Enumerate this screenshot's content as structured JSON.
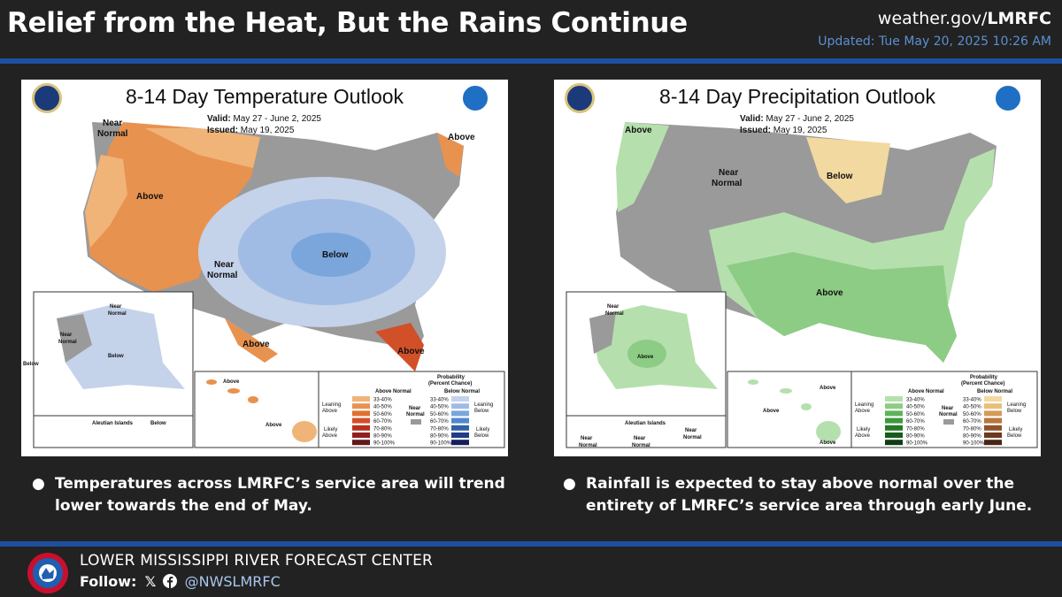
{
  "header": {
    "title": "Relief from the Heat, But the Rains Continue",
    "site_prefix": "weather.gov/",
    "site_bold": "LMRFC",
    "updated": "Updated: Tue May 20, 2025 10:26 AM"
  },
  "colors": {
    "background": "#222222",
    "accent_bar": "#1f4fa0",
    "updated_text": "#5b8fd0",
    "handle_text": "#a9c6ee"
  },
  "temperature_map": {
    "title": "8-14 Day Temperature Outlook",
    "valid_label": "Valid:",
    "valid_value": "May 27 - June 2, 2025",
    "issued_label": "Issued:",
    "issued_value": "May 19, 2025",
    "regions": {
      "near_normal_nw_1": "Near",
      "near_normal_nw_2": "Normal",
      "above_west": "Above",
      "above_ne": "Above",
      "near_normal_central_1": "Near",
      "near_normal_central_2": "Normal",
      "below_central": "Below",
      "above_texas": "Above",
      "above_florida": "Above",
      "ak_near_normal_n_1": "Near",
      "ak_near_normal_n_2": "Normal",
      "ak_near_normal_w_1": "Near",
      "ak_near_normal_w_2": "Normal",
      "ak_below": "Below",
      "ak_below_w": "Below",
      "aleutian": "Aleutian Islands",
      "aleutian_below": "Below",
      "hi_above_1": "Above",
      "hi_above_2": "Above"
    },
    "legend": {
      "heading_1": "Probability",
      "heading_2": "(Percent Chance)",
      "above_header": "Above Normal",
      "below_header": "Below Normal",
      "leaning_above_1": "Leaning",
      "leaning_above_2": "Above",
      "likely_above_1": "Likely",
      "likely_above_2": "Above",
      "leaning_below_1": "Leaning",
      "leaning_below_2": "Below",
      "likely_below_1": "Likely",
      "likely_below_2": "Below",
      "near_normal_1": "Near",
      "near_normal_2": "Normal",
      "ranges": [
        "33-40%",
        "40-50%",
        "50-60%",
        "60-70%",
        "70-80%",
        "80-90%",
        "90-100%"
      ],
      "above_colors": [
        "#f0b478",
        "#e89250",
        "#e07030",
        "#d25028",
        "#b83020",
        "#902020",
        "#601818"
      ],
      "below_colors": [
        "#c4d2ea",
        "#a0bce4",
        "#7aa6dc",
        "#5088cc",
        "#3060a8",
        "#1f3c84",
        "#141e5c"
      ]
    }
  },
  "precipitation_map": {
    "title": "8-14 Day Precipitation Outlook",
    "valid_label": "Valid:",
    "valid_value": "May 27 - June 2, 2025",
    "issued_label": "Issued:",
    "issued_value": "May 19, 2025",
    "regions": {
      "above_nw": "Above",
      "near_normal_1": "Near",
      "near_normal_2": "Normal",
      "below_north": "Below",
      "above_south": "Above",
      "ak_near_normal_1": "Near",
      "ak_near_normal_2": "Normal",
      "ak_above": "Above",
      "aleutian": "Aleutian Islands",
      "aleutian_near_normal_1": "Near",
      "aleutian_near_normal_2": "Normal",
      "aleutian_near_normal_a_1": "Near",
      "aleutian_near_normal_a_2": "Normal",
      "aleutian_near_normal_b_1": "Near",
      "aleutian_near_normal_b_2": "Normal",
      "hi_above_1": "Above",
      "hi_above_2": "Above",
      "hi_above_3": "Above"
    },
    "legend": {
      "heading_1": "Probability",
      "heading_2": "(Percent Chance)",
      "above_header": "Above Normal",
      "below_header": "Below Normal",
      "leaning_above_1": "Leaning",
      "leaning_above_2": "Above",
      "likely_above_1": "Likely",
      "likely_above_2": "Above",
      "leaning_below_1": "Leaning",
      "leaning_below_2": "Below",
      "likely_below_1": "Likely",
      "likely_below_2": "Below",
      "near_normal_1": "Near",
      "near_normal_2": "Normal",
      "ranges": [
        "33-40%",
        "40-50%",
        "50-60%",
        "60-70%",
        "70-80%",
        "80-90%",
        "90-100%"
      ],
      "above_colors": [
        "#b6dfae",
        "#8ccc84",
        "#5eb35a",
        "#3c9a3c",
        "#267a28",
        "#175c1a",
        "#0c3e10"
      ],
      "below_colors": [
        "#f2d9a0",
        "#e8bf78",
        "#d69a58",
        "#b8783c",
        "#905428",
        "#6c3a1c",
        "#4a2412"
      ]
    }
  },
  "bullets": {
    "dot": "●",
    "temperature": "Temperatures across LMRFC’s service area will trend lower towards the end of May.",
    "precipitation": "Rainfall is expected to stay above normal over the entirety of LMRFC’s service area through early June."
  },
  "footer": {
    "org": "LOWER MISSISSIPPI RIVER FORECAST CENTER",
    "follow_label": "Follow:",
    "handle": "@NWSLMRFC",
    "logo_icon": "nws-logo-icon",
    "social_icons": [
      "x-icon",
      "facebook-icon"
    ]
  }
}
